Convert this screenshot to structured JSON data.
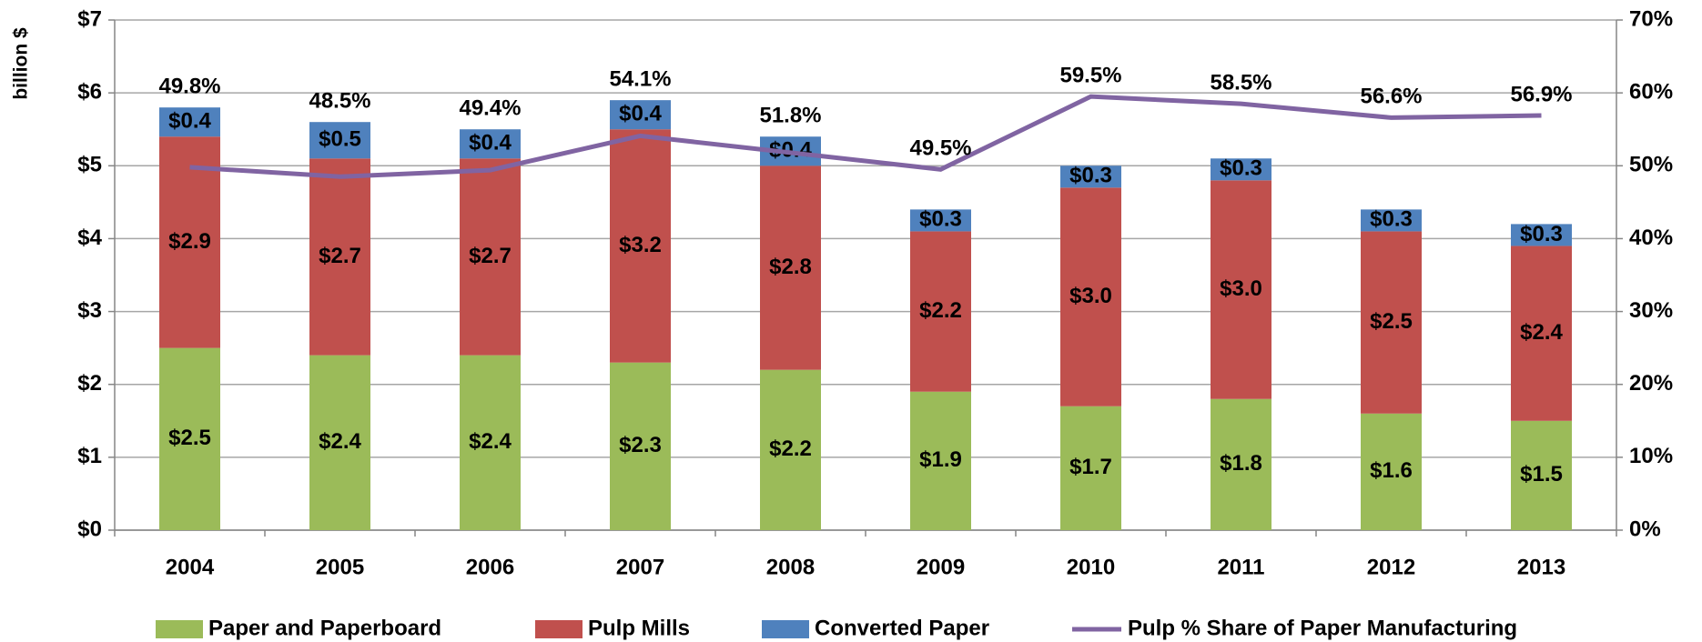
{
  "chart_data": {
    "type": "bar",
    "stacked": true,
    "y_label": "billion $",
    "categories": [
      "2004",
      "2005",
      "2006",
      "2007",
      "2008",
      "2009",
      "2010",
      "2011",
      "2012",
      "2013"
    ],
    "series": [
      {
        "name": "Paper and Paperboard",
        "color": "#9bbb59",
        "values": [
          2.5,
          2.4,
          2.4,
          2.3,
          2.2,
          1.9,
          1.7,
          1.8,
          1.6,
          1.5
        ],
        "value_labels": [
          "$2.5",
          "$2.4",
          "$2.4",
          "$2.3",
          "$2.2",
          "$1.9",
          "$1.7",
          "$1.8",
          "$1.6",
          "$1.5"
        ]
      },
      {
        "name": "Pulp Mills",
        "color": "#c0504d",
        "values": [
          2.9,
          2.7,
          2.7,
          3.2,
          2.8,
          2.2,
          3.0,
          3.0,
          2.5,
          2.4
        ],
        "value_labels": [
          "$2.9",
          "$2.7",
          "$2.7",
          "$3.2",
          "$2.8",
          "$2.2",
          "$3.0",
          "$3.0",
          "$2.5",
          "$2.4"
        ]
      },
      {
        "name": "Converted Paper",
        "color": "#4f81bd",
        "values": [
          0.4,
          0.5,
          0.4,
          0.4,
          0.4,
          0.3,
          0.3,
          0.3,
          0.3,
          0.3
        ],
        "value_labels": [
          "$0.4",
          "$0.5",
          "$0.4",
          "$0.4",
          "$0.4",
          "$0.3",
          "$0.3",
          "$0.3",
          "$0.3",
          "$0.3"
        ]
      },
      {
        "name": "Pulp % Share of Paper Manufacturing",
        "type": "line",
        "axis": "y2",
        "color": "#8064a2",
        "values": [
          49.8,
          48.5,
          49.4,
          54.1,
          51.8,
          49.5,
          59.5,
          58.5,
          56.6,
          56.9
        ],
        "value_labels": [
          "49.8%",
          "48.5%",
          "49.4%",
          "54.1%",
          "51.8%",
          "49.5%",
          "59.5%",
          "58.5%",
          "56.6%",
          "56.9%"
        ]
      }
    ],
    "ylim": [
      0,
      7
    ],
    "yticks": [
      {
        "value": 0,
        "label": "$0"
      },
      {
        "value": 1,
        "label": "$1"
      },
      {
        "value": 2,
        "label": "$2"
      },
      {
        "value": 3,
        "label": "$3"
      },
      {
        "value": 4,
        "label": "$4"
      },
      {
        "value": 5,
        "label": "$5"
      },
      {
        "value": 6,
        "label": "$6"
      },
      {
        "value": 7,
        "label": "$7"
      }
    ],
    "y2lim": [
      0,
      70
    ],
    "y2ticks": [
      {
        "value": 0,
        "label": "0%"
      },
      {
        "value": 10,
        "label": "10%"
      },
      {
        "value": 20,
        "label": "20%"
      },
      {
        "value": 30,
        "label": "30%"
      },
      {
        "value": 40,
        "label": "40%"
      },
      {
        "value": 50,
        "label": "50%"
      },
      {
        "value": 60,
        "label": "60%"
      },
      {
        "value": 70,
        "label": "70%"
      }
    ],
    "grid": true,
    "legend": "bottom"
  }
}
